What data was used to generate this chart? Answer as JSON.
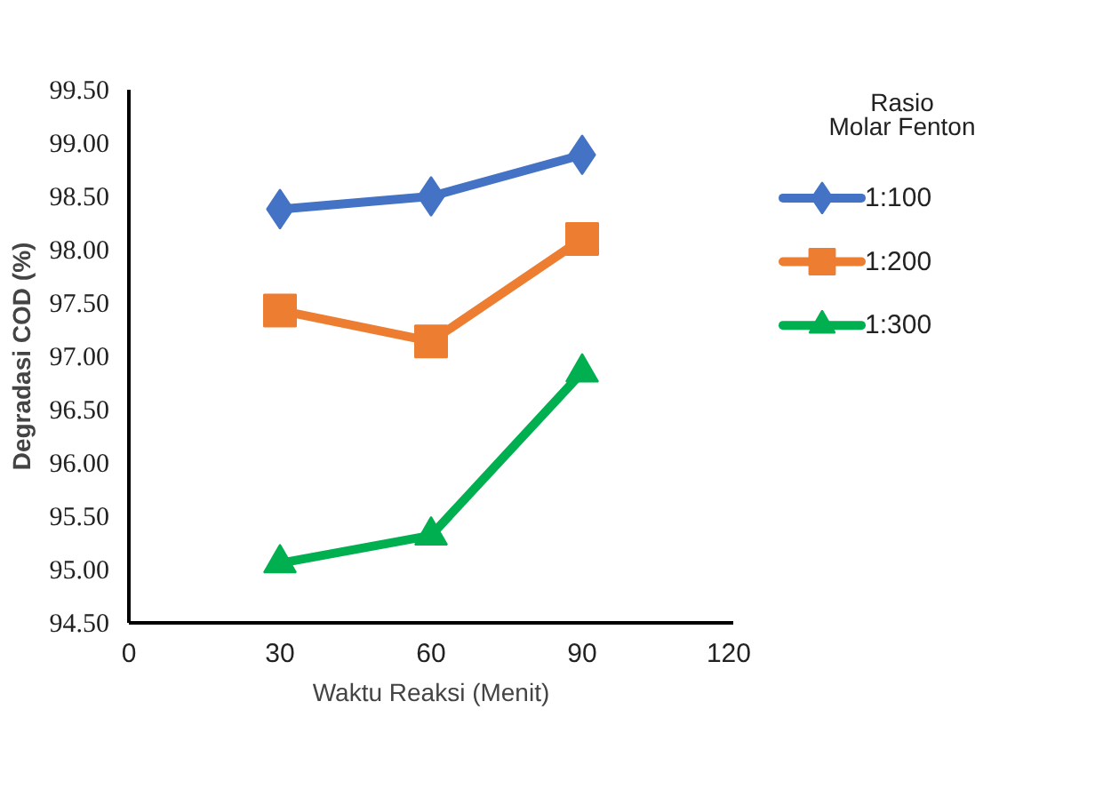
{
  "chart_data": {
    "type": "line",
    "xlabel": "Waktu Reaksi (Menit)",
    "ylabel": "Degradasi COD (%)",
    "legend_title": "Rasio\nMolar Fenton",
    "x": [
      30,
      60,
      90
    ],
    "xlim": [
      0,
      120
    ],
    "xticks": [
      0,
      30,
      60,
      90,
      120
    ],
    "ylim": [
      94.5,
      99.5
    ],
    "yticks": [
      {
        "value": 94.5,
        "label": "94.50"
      },
      {
        "value": 95,
        "label": "95.00"
      },
      {
        "value": 95.5,
        "label": "95.50"
      },
      {
        "value": 96,
        "label": "96.00"
      },
      {
        "value": 96.5,
        "label": "96.50"
      },
      {
        "value": 97,
        "label": "97.00"
      },
      {
        "value": 97.5,
        "label": "97.50"
      },
      {
        "value": 98,
        "label": "98.00"
      },
      {
        "value": 98.5,
        "label": "98.50"
      },
      {
        "value": 99,
        "label": "99.00"
      },
      {
        "value": 99.5,
        "label": "99.50"
      }
    ],
    "grid": false,
    "legend": "right",
    "line_style": "solid",
    "series": [
      {
        "name": "1:100",
        "color": "#4472c4",
        "marker": "diamond",
        "values": [
          98.38,
          98.5,
          98.89
        ]
      },
      {
        "name": "1:200",
        "color": "#ed7d31",
        "marker": "square",
        "values": [
          97.43,
          97.14,
          98.1
        ]
      },
      {
        "name": "1:300",
        "color": "#00b050",
        "marker": "triangle",
        "values": [
          95.06,
          95.32,
          96.85
        ]
      }
    ]
  }
}
